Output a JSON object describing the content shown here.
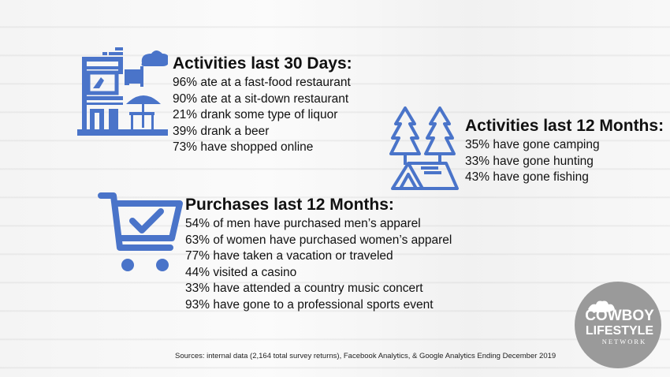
{
  "activities_30_days": {
    "heading": "Activities last 30 Days:",
    "lines": [
      "96% ate at a fast-food restaurant",
      "90% ate at a sit-down restaurant",
      "21% drank some type of liquor",
      "39% drank a beer",
      "73% have shopped online"
    ]
  },
  "activities_12_months": {
    "heading": "Activities last 12 Months:",
    "lines": [
      "35% have gone camping",
      "33% have gone hunting",
      "43% have gone fishing"
    ]
  },
  "purchases_12_months": {
    "heading": "Purchases last 12 Months:",
    "lines": [
      "54% of men have purchased men’s apparel",
      "63% of women have purchased women’s apparel",
      "77% have taken a vacation or traveled",
      "44% visited a casino",
      "33% have attended a country music concert",
      "93% have gone to a professional sports event"
    ]
  },
  "sources": "Sources: internal data (2,164 total survey returns), Facebook Analytics, & Google Analytics Ending December 2019",
  "logo": {
    "line1": "COWBOY",
    "line2": "LIFESTYLE",
    "line3": "NETWORK"
  },
  "icons": {
    "restaurant": "restaurant-icon",
    "camping": "camping-tent-icon",
    "cart": "shopping-cart-check-icon"
  },
  "colors": {
    "accent": "#4a74c9",
    "logo_bg": "#9a9a9a"
  }
}
